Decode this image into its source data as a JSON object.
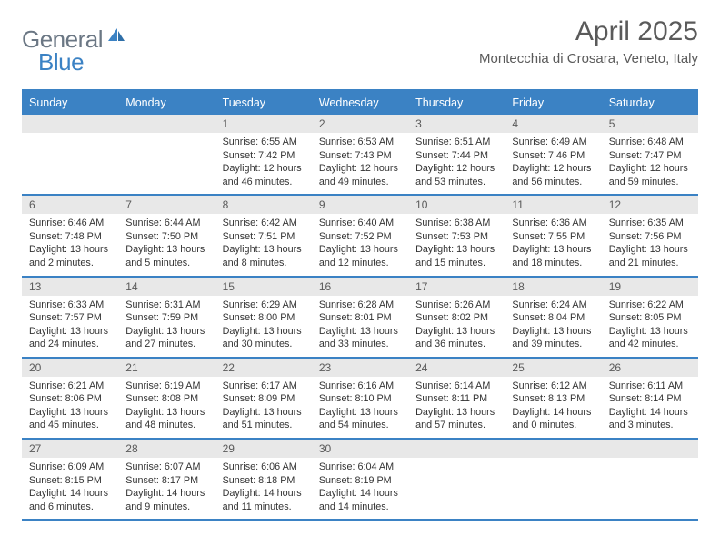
{
  "brand": {
    "part1": "General",
    "part2": "Blue"
  },
  "title": "April 2025",
  "location": "Montecchia di Crosara, Veneto, Italy",
  "colors": {
    "accent": "#3b82c4",
    "header_text": "#ffffff",
    "daynum_bg": "#e8e8e8",
    "text": "#333333",
    "muted": "#5a5a5a",
    "page_bg": "#ffffff"
  },
  "typography": {
    "base_fontsize": 11,
    "title_fontsize": 30,
    "location_fontsize": 15,
    "dayhead_fontsize": 12.5
  },
  "calendar": {
    "type": "table",
    "day_headers": [
      "Sunday",
      "Monday",
      "Tuesday",
      "Wednesday",
      "Thursday",
      "Friday",
      "Saturday"
    ],
    "weeks": [
      [
        {
          "n": "",
          "sr": "",
          "ss": "",
          "dl": ""
        },
        {
          "n": "",
          "sr": "",
          "ss": "",
          "dl": ""
        },
        {
          "n": "1",
          "sr": "Sunrise: 6:55 AM",
          "ss": "Sunset: 7:42 PM",
          "dl": "Daylight: 12 hours and 46 minutes."
        },
        {
          "n": "2",
          "sr": "Sunrise: 6:53 AM",
          "ss": "Sunset: 7:43 PM",
          "dl": "Daylight: 12 hours and 49 minutes."
        },
        {
          "n": "3",
          "sr": "Sunrise: 6:51 AM",
          "ss": "Sunset: 7:44 PM",
          "dl": "Daylight: 12 hours and 53 minutes."
        },
        {
          "n": "4",
          "sr": "Sunrise: 6:49 AM",
          "ss": "Sunset: 7:46 PM",
          "dl": "Daylight: 12 hours and 56 minutes."
        },
        {
          "n": "5",
          "sr": "Sunrise: 6:48 AM",
          "ss": "Sunset: 7:47 PM",
          "dl": "Daylight: 12 hours and 59 minutes."
        }
      ],
      [
        {
          "n": "6",
          "sr": "Sunrise: 6:46 AM",
          "ss": "Sunset: 7:48 PM",
          "dl": "Daylight: 13 hours and 2 minutes."
        },
        {
          "n": "7",
          "sr": "Sunrise: 6:44 AM",
          "ss": "Sunset: 7:50 PM",
          "dl": "Daylight: 13 hours and 5 minutes."
        },
        {
          "n": "8",
          "sr": "Sunrise: 6:42 AM",
          "ss": "Sunset: 7:51 PM",
          "dl": "Daylight: 13 hours and 8 minutes."
        },
        {
          "n": "9",
          "sr": "Sunrise: 6:40 AM",
          "ss": "Sunset: 7:52 PM",
          "dl": "Daylight: 13 hours and 12 minutes."
        },
        {
          "n": "10",
          "sr": "Sunrise: 6:38 AM",
          "ss": "Sunset: 7:53 PM",
          "dl": "Daylight: 13 hours and 15 minutes."
        },
        {
          "n": "11",
          "sr": "Sunrise: 6:36 AM",
          "ss": "Sunset: 7:55 PM",
          "dl": "Daylight: 13 hours and 18 minutes."
        },
        {
          "n": "12",
          "sr": "Sunrise: 6:35 AM",
          "ss": "Sunset: 7:56 PM",
          "dl": "Daylight: 13 hours and 21 minutes."
        }
      ],
      [
        {
          "n": "13",
          "sr": "Sunrise: 6:33 AM",
          "ss": "Sunset: 7:57 PM",
          "dl": "Daylight: 13 hours and 24 minutes."
        },
        {
          "n": "14",
          "sr": "Sunrise: 6:31 AM",
          "ss": "Sunset: 7:59 PM",
          "dl": "Daylight: 13 hours and 27 minutes."
        },
        {
          "n": "15",
          "sr": "Sunrise: 6:29 AM",
          "ss": "Sunset: 8:00 PM",
          "dl": "Daylight: 13 hours and 30 minutes."
        },
        {
          "n": "16",
          "sr": "Sunrise: 6:28 AM",
          "ss": "Sunset: 8:01 PM",
          "dl": "Daylight: 13 hours and 33 minutes."
        },
        {
          "n": "17",
          "sr": "Sunrise: 6:26 AM",
          "ss": "Sunset: 8:02 PM",
          "dl": "Daylight: 13 hours and 36 minutes."
        },
        {
          "n": "18",
          "sr": "Sunrise: 6:24 AM",
          "ss": "Sunset: 8:04 PM",
          "dl": "Daylight: 13 hours and 39 minutes."
        },
        {
          "n": "19",
          "sr": "Sunrise: 6:22 AM",
          "ss": "Sunset: 8:05 PM",
          "dl": "Daylight: 13 hours and 42 minutes."
        }
      ],
      [
        {
          "n": "20",
          "sr": "Sunrise: 6:21 AM",
          "ss": "Sunset: 8:06 PM",
          "dl": "Daylight: 13 hours and 45 minutes."
        },
        {
          "n": "21",
          "sr": "Sunrise: 6:19 AM",
          "ss": "Sunset: 8:08 PM",
          "dl": "Daylight: 13 hours and 48 minutes."
        },
        {
          "n": "22",
          "sr": "Sunrise: 6:17 AM",
          "ss": "Sunset: 8:09 PM",
          "dl": "Daylight: 13 hours and 51 minutes."
        },
        {
          "n": "23",
          "sr": "Sunrise: 6:16 AM",
          "ss": "Sunset: 8:10 PM",
          "dl": "Daylight: 13 hours and 54 minutes."
        },
        {
          "n": "24",
          "sr": "Sunrise: 6:14 AM",
          "ss": "Sunset: 8:11 PM",
          "dl": "Daylight: 13 hours and 57 minutes."
        },
        {
          "n": "25",
          "sr": "Sunrise: 6:12 AM",
          "ss": "Sunset: 8:13 PM",
          "dl": "Daylight: 14 hours and 0 minutes."
        },
        {
          "n": "26",
          "sr": "Sunrise: 6:11 AM",
          "ss": "Sunset: 8:14 PM",
          "dl": "Daylight: 14 hours and 3 minutes."
        }
      ],
      [
        {
          "n": "27",
          "sr": "Sunrise: 6:09 AM",
          "ss": "Sunset: 8:15 PM",
          "dl": "Daylight: 14 hours and 6 minutes."
        },
        {
          "n": "28",
          "sr": "Sunrise: 6:07 AM",
          "ss": "Sunset: 8:17 PM",
          "dl": "Daylight: 14 hours and 9 minutes."
        },
        {
          "n": "29",
          "sr": "Sunrise: 6:06 AM",
          "ss": "Sunset: 8:18 PM",
          "dl": "Daylight: 14 hours and 11 minutes."
        },
        {
          "n": "30",
          "sr": "Sunrise: 6:04 AM",
          "ss": "Sunset: 8:19 PM",
          "dl": "Daylight: 14 hours and 14 minutes."
        },
        {
          "n": "",
          "sr": "",
          "ss": "",
          "dl": ""
        },
        {
          "n": "",
          "sr": "",
          "ss": "",
          "dl": ""
        },
        {
          "n": "",
          "sr": "",
          "ss": "",
          "dl": ""
        }
      ]
    ]
  }
}
